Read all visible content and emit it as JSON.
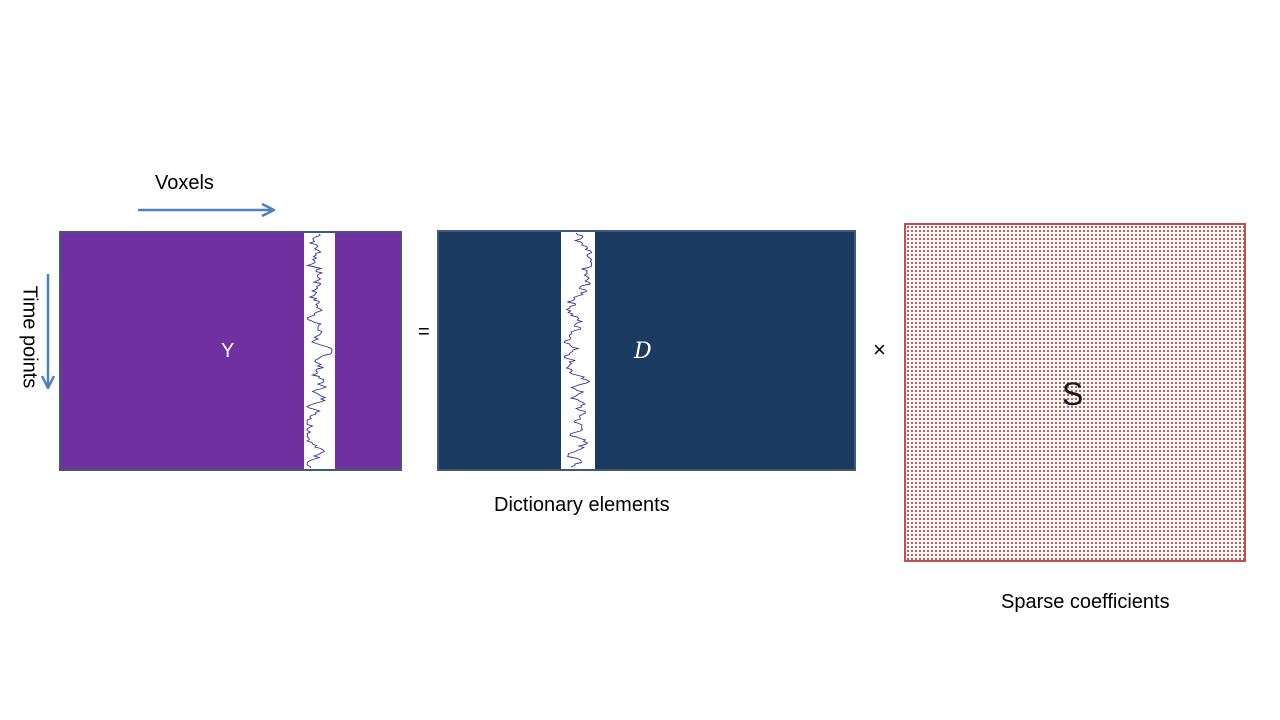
{
  "axes": {
    "voxels_label": "Voxels",
    "time_label": "Time points"
  },
  "matrices": {
    "y": {
      "symbol": "Y",
      "fill_color": "#7030a0"
    },
    "d": {
      "symbol": "D",
      "fill_color": "#1b3a60",
      "caption": "Dictionary elements"
    },
    "s": {
      "symbol": "S",
      "dot_color": "#b85450",
      "border_color": "#c0504d",
      "caption": "Sparse coefficients"
    }
  },
  "operators": {
    "equals": "=",
    "times": "×"
  },
  "colors": {
    "arrow": "#4f81bd",
    "signal_trace": "#2f2f9a",
    "matrix_border": "#41587a"
  }
}
